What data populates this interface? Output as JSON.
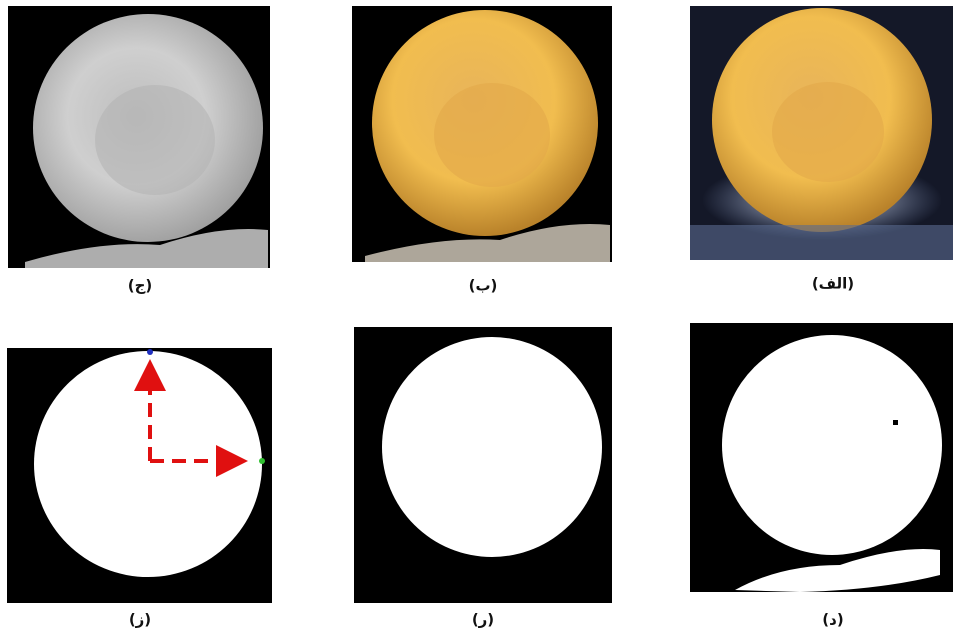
{
  "panels": [
    {
      "label": "(الف)"
    },
    {
      "label": "(ب)"
    },
    {
      "label": "(ج)"
    },
    {
      "label": "(د)"
    },
    {
      "label": "(ر)"
    },
    {
      "label": "(ز)"
    }
  ]
}
